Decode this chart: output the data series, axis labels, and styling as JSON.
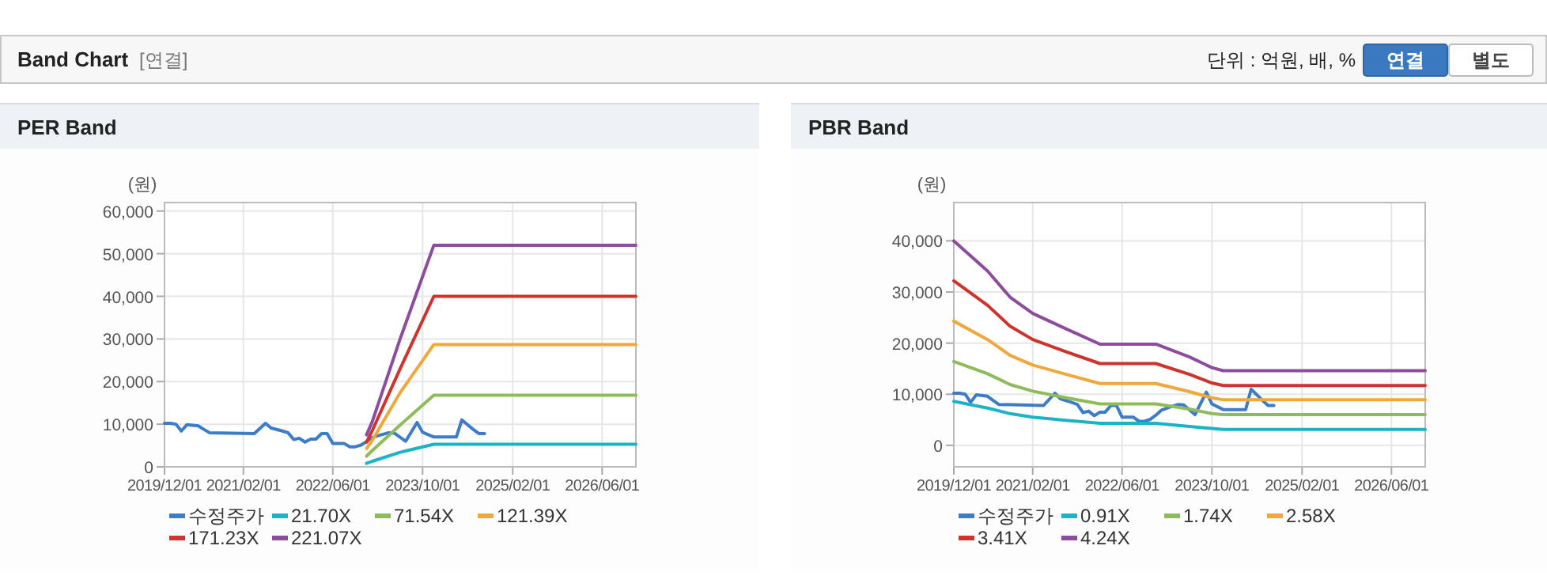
{
  "chart_data": [
    {
      "type": "other",
      "title": "Band Chart",
      "subtitle": "[연결]",
      "annotations": [
        "단위 : 억원, 배, %",
        "연결",
        "별도"
      ]
    },
    {
      "type": "line",
      "title": "PER Band",
      "ylabel": "(원)",
      "grid": true,
      "legend": "bottom",
      "line_style": "solid",
      "marker": "none",
      "xlim": [
        "2019-12-01",
        "2026-12-01"
      ],
      "ylim": [
        0,
        62000
      ],
      "xticks": [
        {
          "value": "2019-12-01",
          "label": "2019/12/01"
        },
        {
          "value": "2021-02-01",
          "label": "2021/02/01"
        },
        {
          "value": "2022-06-01",
          "label": "2022/06/01"
        },
        {
          "value": "2023-10-01",
          "label": "2023/10/01"
        },
        {
          "value": "2025-02-01",
          "label": "2025/02/01"
        },
        {
          "value": "2026-06-01",
          "label": "2026/06/01"
        }
      ],
      "yticks": [
        0,
        {
          "value": 10000,
          "label": "10,000"
        },
        {
          "value": 20000,
          "label": "20,000"
        },
        {
          "value": 30000,
          "label": "30,000"
        },
        {
          "value": 40000,
          "label": "40,000"
        },
        {
          "value": 50000,
          "label": "50,000"
        },
        {
          "value": 60000,
          "label": "60,000"
        }
      ],
      "series": [
        {
          "name": "수정주가",
          "color": "#3d7cc9",
          "x": [
            "2019-12",
            "2020-01",
            "2020-02",
            "2020-03",
            "2020-04",
            "2020-06",
            "2020-07",
            "2020-08",
            "2021-04",
            "2021-06",
            "2021-07",
            "2021-09",
            "2021-10",
            "2021-11",
            "2021-12",
            "2022-01",
            "2022-02",
            "2022-03",
            "2022-04",
            "2022-05",
            "2022-06",
            "2022-07",
            "2022-08",
            "2022-09",
            "2022-10",
            "2022-11",
            "2022-12",
            "2023-01",
            "2023-02",
            "2023-04",
            "2023-05",
            "2023-07",
            "2023-09",
            "2023-10",
            "2023-12",
            "2024-04",
            "2024-05",
            "2024-07",
            "2024-08",
            "2024-09"
          ],
          "values": [
            10200,
            10200,
            10000,
            8400,
            9900,
            9600,
            8800,
            8000,
            7800,
            10200,
            9100,
            8400,
            8000,
            6400,
            6700,
            5800,
            6500,
            6500,
            7800,
            7800,
            5500,
            5500,
            5500,
            4700,
            4700,
            5100,
            5900,
            6900,
            7300,
            8000,
            7900,
            6000,
            10400,
            8100,
            7000,
            7000,
            11000,
            8800,
            7800,
            7800
          ]
        },
        {
          "name": "21.70X",
          "color": "#1bb3c8",
          "x": [
            "2022-12",
            "2023-01",
            "2023-06",
            "2023-12",
            "2026-12"
          ],
          "values": [
            800,
            1300,
            3400,
            5300,
            5300
          ]
        },
        {
          "name": "71.54X",
          "color": "#8fbc5a",
          "x": [
            "2022-12",
            "2023-01",
            "2023-06",
            "2023-12",
            "2026-12"
          ],
          "values": [
            2500,
            3800,
            9800,
            16800,
            16800
          ]
        },
        {
          "name": "121.39X",
          "color": "#f0a83c",
          "x": [
            "2022-12",
            "2023-01",
            "2023-06",
            "2023-12",
            "2026-12"
          ],
          "values": [
            4300,
            6200,
            17400,
            28700,
            28700
          ]
        },
        {
          "name": "171.23X",
          "color": "#d0332b",
          "x": [
            "2022-12",
            "2023-01",
            "2023-06",
            "2023-12",
            "2026-12"
          ],
          "values": [
            5800,
            8500,
            23000,
            40000,
            40000
          ]
        },
        {
          "name": "221.07X",
          "color": "#8e4c9e",
          "x": [
            "2022-12",
            "2023-01",
            "2023-06",
            "2023-12",
            "2026-12"
          ],
          "values": [
            7500,
            10600,
            30000,
            52000,
            52000
          ]
        }
      ]
    },
    {
      "type": "line",
      "title": "PBR Band",
      "ylabel": "(원)",
      "grid": true,
      "legend": "bottom",
      "line_style": "solid",
      "marker": "none",
      "xlim": [
        "2019-12-01",
        "2026-12-01"
      ],
      "ylim": [
        -4200,
        47500
      ],
      "xticks": [
        {
          "value": "2019-12-01",
          "label": "2019/12/01"
        },
        {
          "value": "2021-02-01",
          "label": "2021/02/01"
        },
        {
          "value": "2022-06-01",
          "label": "2022/06/01"
        },
        {
          "value": "2023-10-01",
          "label": "2023/10/01"
        },
        {
          "value": "2025-02-01",
          "label": "2025/02/01"
        },
        {
          "value": "2026-06-01",
          "label": "2026/06/01"
        }
      ],
      "yticks": [
        0,
        {
          "value": 10000,
          "label": "10,000"
        },
        {
          "value": 20000,
          "label": "20,000"
        },
        {
          "value": 30000,
          "label": "30,000"
        },
        {
          "value": 40000,
          "label": "40,000"
        }
      ],
      "series": [
        {
          "name": "수정주가",
          "color": "#3d7cc9",
          "x": [
            "2019-12",
            "2020-01",
            "2020-02",
            "2020-03",
            "2020-04",
            "2020-06",
            "2020-07",
            "2020-08",
            "2021-04",
            "2021-06",
            "2021-07",
            "2021-09",
            "2021-10",
            "2021-11",
            "2021-12",
            "2022-01",
            "2022-02",
            "2022-03",
            "2022-04",
            "2022-05",
            "2022-06",
            "2022-07",
            "2022-08",
            "2022-09",
            "2022-10",
            "2022-11",
            "2022-12",
            "2023-01",
            "2023-02",
            "2023-04",
            "2023-05",
            "2023-07",
            "2023-09",
            "2023-10",
            "2023-12",
            "2024-04",
            "2024-05",
            "2024-07",
            "2024-08",
            "2024-09"
          ],
          "values": [
            10200,
            10200,
            10000,
            8400,
            9900,
            9600,
            8800,
            8000,
            7800,
            10200,
            9100,
            8400,
            8000,
            6400,
            6700,
            5800,
            6500,
            6500,
            7800,
            7800,
            5500,
            5500,
            5500,
            4700,
            4700,
            5100,
            5900,
            6900,
            7300,
            8000,
            7900,
            6000,
            10400,
            8100,
            7000,
            7000,
            11000,
            8800,
            7800,
            7800
          ]
        },
        {
          "name": "0.91X",
          "color": "#1bb3c8",
          "x": [
            "2019-12",
            "2020-06",
            "2020-10",
            "2021-02",
            "2021-08",
            "2022-02",
            "2022-12",
            "2023-06",
            "2023-10",
            "2023-12",
            "2026-12"
          ],
          "values": [
            8600,
            7300,
            6200,
            5500,
            4900,
            4300,
            4300,
            3700,
            3300,
            3100,
            3100
          ]
        },
        {
          "name": "1.74X",
          "color": "#8fbc5a",
          "x": [
            "2019-12",
            "2020-06",
            "2020-10",
            "2021-02",
            "2021-08",
            "2022-02",
            "2022-12",
            "2023-06",
            "2023-10",
            "2023-12",
            "2026-12"
          ],
          "values": [
            16400,
            14000,
            11900,
            10600,
            9300,
            8100,
            8100,
            7100,
            6200,
            6000,
            6000
          ]
        },
        {
          "name": "2.58X",
          "color": "#f0a83c",
          "x": [
            "2019-12",
            "2020-06",
            "2020-10",
            "2021-02",
            "2021-08",
            "2022-02",
            "2022-12",
            "2023-06",
            "2023-10",
            "2023-12",
            "2026-12"
          ],
          "values": [
            24300,
            20700,
            17600,
            15700,
            13900,
            12100,
            12100,
            10500,
            9300,
            8900,
            8900
          ]
        },
        {
          "name": "3.41X",
          "color": "#d0332b",
          "x": [
            "2019-12",
            "2020-06",
            "2020-10",
            "2021-02",
            "2021-08",
            "2022-02",
            "2022-12",
            "2023-06",
            "2023-10",
            "2023-12",
            "2026-12"
          ],
          "values": [
            32200,
            27400,
            23300,
            20700,
            18300,
            16000,
            16000,
            13900,
            12200,
            11700,
            11700
          ]
        },
        {
          "name": "4.24X",
          "color": "#8e4c9e",
          "x": [
            "2019-12",
            "2020-06",
            "2020-10",
            "2021-02",
            "2021-08",
            "2022-02",
            "2022-12",
            "2023-06",
            "2023-10",
            "2023-12",
            "2026-12"
          ],
          "values": [
            40000,
            34100,
            29000,
            25800,
            22800,
            19800,
            19800,
            17300,
            15200,
            14600,
            14600
          ]
        }
      ]
    }
  ]
}
